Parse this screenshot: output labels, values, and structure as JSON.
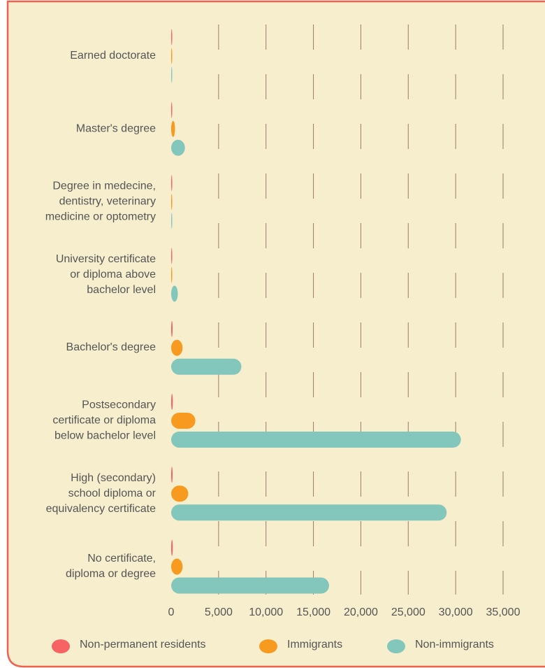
{
  "chart_data": {
    "type": "bar",
    "orientation": "horizontal",
    "categories": [
      "Earned doctorate",
      "Master's degree",
      "Degree in medecine,\ndentistry, veterinary\nmedicine or optometry",
      "University certificate\nor diploma above\nbachelor level",
      "Bachelor's degree",
      "Postsecondary\ncertificate or diploma\nbelow bachelor level",
      "High (secondary)\nschool diploma or\nequivalency certificate",
      "No certificate,\ndiploma or degree"
    ],
    "series": [
      {
        "name": "Non-permanent residents",
        "color": "#f76262",
        "values": [
          20,
          30,
          20,
          20,
          150,
          170,
          150,
          170
        ]
      },
      {
        "name": "Immigrants",
        "color": "#f79a1f",
        "values": [
          50,
          400,
          60,
          80,
          1200,
          2550,
          1800,
          1200
        ]
      },
      {
        "name": "Non-immigrants",
        "color": "#82c6bc",
        "values": [
          80,
          1450,
          100,
          700,
          7400,
          30550,
          29050,
          16650
        ]
      }
    ],
    "xlim": [
      0,
      35000
    ],
    "xticks": [
      0,
      {
        "value": 5000,
        "label": "5,000"
      },
      {
        "value": 10000,
        "label": "10,000"
      },
      {
        "value": 15000,
        "label": "15,000"
      },
      {
        "value": 20000,
        "label": "20,000"
      },
      {
        "value": 25000,
        "label": "25,000"
      },
      {
        "value": 30000,
        "label": "30,000"
      },
      {
        "value": 35000,
        "label": "35,000"
      }
    ],
    "grid": true,
    "legend": "bottom"
  }
}
